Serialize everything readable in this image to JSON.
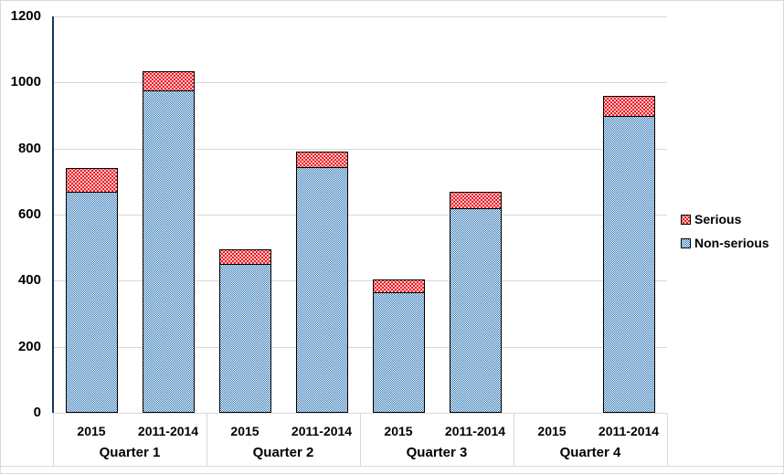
{
  "chart_data": {
    "type": "bar",
    "stacked": true,
    "groups": [
      "Quarter 1",
      "Quarter 2",
      "Quarter 3",
      "Quarter 4"
    ],
    "x_categories": [
      "2015",
      "2011-2014",
      "2015",
      "2011-2014",
      "2015",
      "2011-2014",
      "2015",
      "2011-2014"
    ],
    "series": [
      {
        "name": "Serious",
        "color": "#ed1c24",
        "pattern": "red-white-diagonal-dots",
        "values": [
          70,
          60,
          45,
          45,
          40,
          50,
          0,
          60
        ]
      },
      {
        "name": "Non-serious",
        "color": "#2b74b3",
        "pattern": "blue-white-fine-checkerboard",
        "values": [
          670,
          975,
          450,
          745,
          365,
          620,
          0,
          900
        ]
      }
    ],
    "ylim": [
      0,
      1200
    ],
    "yticks": [
      0,
      200,
      400,
      600,
      800,
      1000,
      1200
    ],
    "grid": true,
    "gridline_color": "#d9d9d9",
    "axis_line_color": "#17375e",
    "bar_border_color": "#000000",
    "legend_position": "right"
  }
}
